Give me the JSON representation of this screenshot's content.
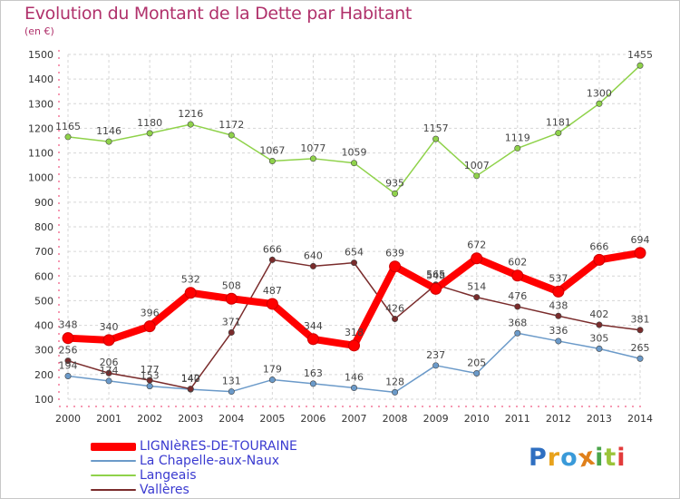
{
  "title": "Evolution du Montant de la Dette par Habitant",
  "subtitle": "(en €)",
  "logo": {
    "text": "Proxiti",
    "colors": [
      "#2f6fc1",
      "#e8a21c",
      "#3a9ad9",
      "#e0801a",
      "#4aa54a",
      "#9bc43a",
      "#e23b3b"
    ]
  },
  "chart_data": {
    "type": "line",
    "x": [
      2000,
      2001,
      2002,
      2003,
      2004,
      2005,
      2006,
      2007,
      2008,
      2009,
      2010,
      2011,
      2012,
      2013,
      2014
    ],
    "yticks": [
      100,
      200,
      300,
      400,
      500,
      600,
      700,
      800,
      900,
      1000,
      1100,
      1200,
      1300,
      1400,
      1500
    ],
    "ylim": [
      100,
      1500
    ],
    "grid": true,
    "legend_position": "bottom-left",
    "series": [
      {
        "name": "Langeais",
        "color": "#8fd24a",
        "values": [
          1165,
          1146,
          1180,
          1216,
          1172,
          1067,
          1077,
          1059,
          935,
          1157,
          1007,
          1119,
          1181,
          1300,
          1455
        ]
      },
      {
        "name": "La Chapelle-aux-Naux",
        "color": "#6b9ac9",
        "values": [
          194,
          174,
          153,
          140,
          131,
          179,
          163,
          146,
          128,
          237,
          205,
          368,
          336,
          305,
          265
        ]
      },
      {
        "name": "Vallères",
        "color": "#7a2c2c",
        "values": [
          256,
          206,
          177,
          142,
          371,
          666,
          640,
          654,
          426,
          565,
          514,
          476,
          438,
          402,
          381
        ]
      },
      {
        "name": "LIGNIèRES-DE-TOURAINE",
        "color": "#ff0000",
        "values": [
          348,
          340,
          396,
          532,
          508,
          487,
          344,
          318,
          639,
          548,
          672,
          602,
          537,
          666,
          694
        ]
      }
    ]
  }
}
